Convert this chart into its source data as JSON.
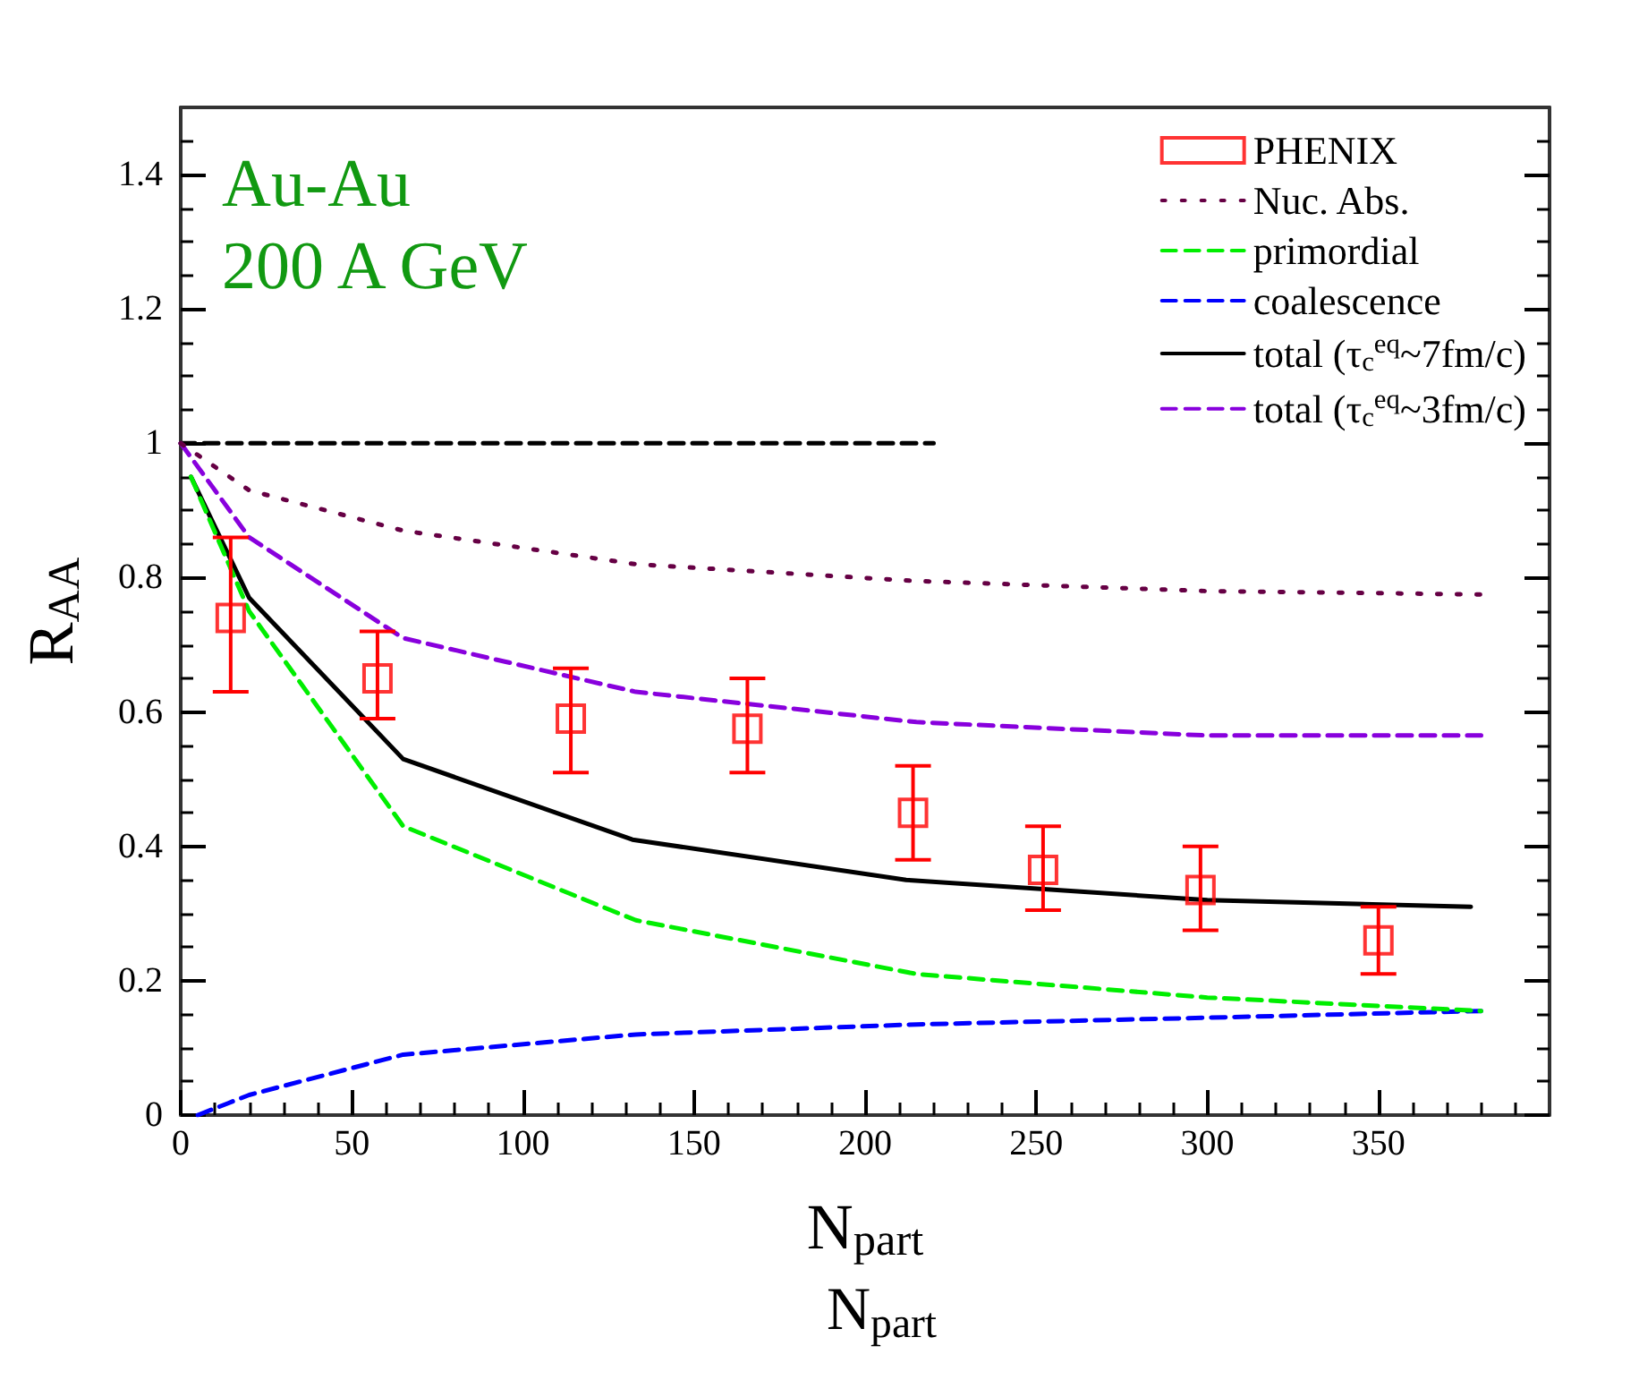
{
  "chart_data": {
    "type": "line",
    "xlabel": "N$_{part}$",
    "ylabel": "R$_{AA}$",
    "annotations": [
      "Au-Au\n200 A GeV",
      "N$_{part}$"
    ],
    "xlim": [
      0,
      400
    ],
    "xticks": [
      0,
      50,
      100,
      150,
      200,
      250,
      300,
      350
    ],
    "ylim": [
      0,
      1.5
    ],
    "yticks": [
      0,
      0.2,
      0.4,
      0.6,
      0.8,
      1,
      1.2,
      1.4
    ],
    "grid": false,
    "legend": "top right",
    "series": [
      {
        "name": "PHENIX",
        "type": "scatter",
        "marker": "square",
        "color": "#ff0000",
        "x": [
          14.6,
          57.5,
          114,
          165.6,
          214,
          252,
          298,
          350
        ],
        "values": [
          0.74,
          0.65,
          0.59,
          0.575,
          0.45,
          0.365,
          0.335,
          0.26
        ],
        "errors": [
          [
            0.63,
            0.86
          ],
          [
            0.59,
            0.72
          ],
          [
            0.51,
            0.665
          ],
          [
            0.51,
            0.65
          ],
          [
            0.38,
            0.52
          ],
          [
            0.305,
            0.43
          ],
          [
            0.275,
            0.4
          ],
          [
            0.21,
            0.31
          ]
        ]
      },
      {
        "name": "Nuc. Abs.",
        "color": "#660044",
        "line_style": "dotted",
        "x": [
          0,
          20,
          65,
          133,
          215,
          300,
          380
        ],
        "values": [
          1,
          0.93,
          0.87,
          0.82,
          0.795,
          0.78,
          0.775
        ]
      },
      {
        "name": "primordial",
        "color": "#00ee00",
        "line_style": "dashed",
        "x": [
          3,
          20,
          65,
          133,
          215,
          300,
          380
        ],
        "values": [
          0.95,
          0.75,
          0.43,
          0.29,
          0.21,
          0.175,
          0.155
        ]
      },
      {
        "name": "coalescence",
        "color": "#0000ff",
        "line_style": "dashed",
        "x": [
          5,
          20,
          65,
          133,
          215,
          300,
          380
        ],
        "values": [
          0,
          0.03,
          0.09,
          0.12,
          0.135,
          0.145,
          0.155
        ]
      },
      {
        "name": "total (τ$_{c}$$^{eq}$~7fm/c)",
        "color": "#000000",
        "line_style": "solid",
        "x": [
          3,
          20,
          65,
          132,
          212,
          300,
          377
        ],
        "values": [
          0.95,
          0.77,
          0.53,
          0.41,
          0.35,
          0.32,
          0.31
        ]
      },
      {
        "name": "total (τ$_{c}$$^{eq}$~3fm/c)",
        "color": "#8800dd",
        "line_style": "dashed",
        "x": [
          0,
          20,
          65,
          133,
          215,
          300,
          380
        ],
        "values": [
          1,
          0.86,
          0.71,
          0.63,
          0.585,
          0.565,
          0.565
        ]
      },
      {
        "color": "#000000",
        "line_style": "dashed",
        "x": [
          0,
          220
        ],
        "values": [
          1,
          1
        ]
      }
    ]
  }
}
